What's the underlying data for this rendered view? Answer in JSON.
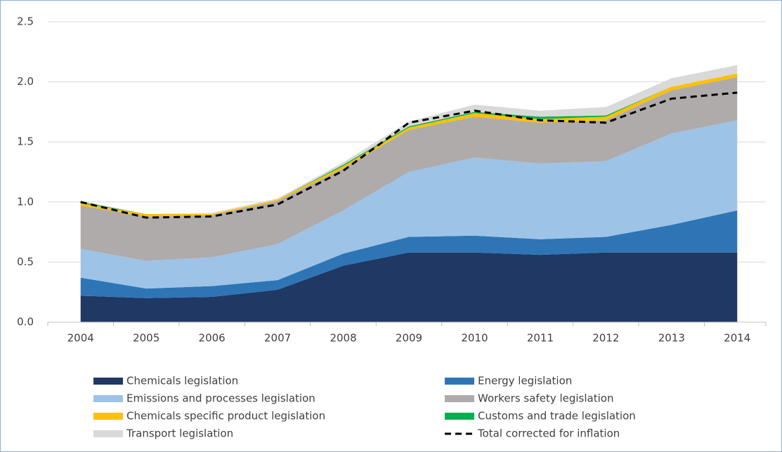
{
  "chart_data": {
    "type": "stacked_area",
    "categories": [
      "2004",
      "2005",
      "2006",
      "2007",
      "2008",
      "2009",
      "2010",
      "2011",
      "2012",
      "2013",
      "2014"
    ],
    "series": [
      {
        "name": "Chemicals legislation",
        "color": "#203864",
        "values": [
          0.22,
          0.2,
          0.21,
          0.27,
          0.47,
          0.58,
          0.58,
          0.56,
          0.58,
          0.58,
          0.58
        ]
      },
      {
        "name": "Energy legislation",
        "color": "#2e75b6",
        "values": [
          0.15,
          0.08,
          0.09,
          0.08,
          0.1,
          0.13,
          0.14,
          0.13,
          0.13,
          0.23,
          0.35
        ]
      },
      {
        "name": "Emissions and processes legislation",
        "color": "#9dc3e6",
        "values": [
          0.24,
          0.23,
          0.24,
          0.3,
          0.36,
          0.54,
          0.65,
          0.63,
          0.63,
          0.76,
          0.75
        ]
      },
      {
        "name": "Workers safety legislation",
        "color": "#afabab",
        "values": [
          0.36,
          0.37,
          0.35,
          0.36,
          0.35,
          0.35,
          0.34,
          0.34,
          0.34,
          0.36,
          0.36
        ]
      },
      {
        "name": "Chemicals specific product legislation",
        "color": "#ffc000",
        "values": [
          0.02,
          0.02,
          0.01,
          0.01,
          0.02,
          0.02,
          0.03,
          0.03,
          0.03,
          0.03,
          0.03
        ]
      },
      {
        "name": "Customs and trade legislation",
        "color": "#00b050",
        "values": [
          0.01,
          0,
          0,
          0,
          0.01,
          0.01,
          0.01,
          0.02,
          0.01,
          0,
          0
        ]
      },
      {
        "name": "Transport legislation",
        "color": "#d9d9d9",
        "values": [
          0.01,
          0,
          0.01,
          0.01,
          0.02,
          0.04,
          0.06,
          0.05,
          0.07,
          0.07,
          0.07
        ]
      }
    ],
    "line": {
      "name": "Total corrected for inflation",
      "color": "#000000",
      "dashed": true,
      "values": [
        1.0,
        0.87,
        0.88,
        0.98,
        1.26,
        1.66,
        1.76,
        1.68,
        1.66,
        1.86,
        1.91
      ]
    },
    "ylim": [
      0,
      2.5
    ],
    "yticks": [
      {
        "value": 0,
        "label": "0.0"
      },
      0.5,
      {
        "value": 1,
        "label": "1.0"
      },
      1.5,
      {
        "value": 2,
        "label": "2.0"
      },
      2.5
    ],
    "grid": true,
    "legend": "bottom"
  }
}
